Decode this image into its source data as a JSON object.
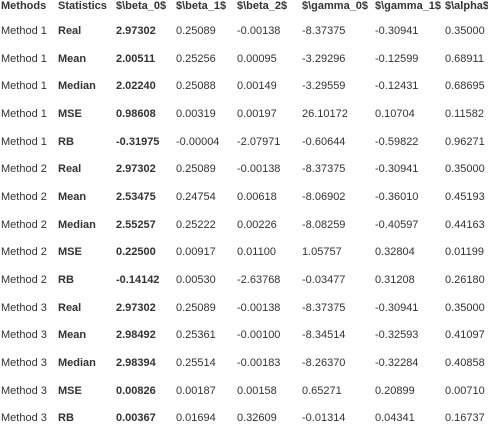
{
  "table": {
    "headers": [
      "Methods",
      "Statistics",
      "$\\beta_0$",
      "$\\beta_1$",
      "$\\beta_2$",
      "$\\gamma_0$",
      "$\\gamma_1$",
      "$\\alpha$"
    ],
    "rows": [
      [
        "Method 1",
        "Real",
        "2.97302",
        "0.25089",
        "-0.00138",
        "-8.37375",
        "-0.30941",
        "0.35000"
      ],
      [
        "Method 1",
        "Mean",
        "2.00511",
        "0.25256",
        "0.00095",
        "-3.29296",
        "-0.12599",
        "0.68911"
      ],
      [
        "Method 1",
        "Median",
        "2.02240",
        "0.25088",
        "0.00149",
        "-3.29559",
        "-0.12431",
        "0.68695"
      ],
      [
        "Method 1",
        "MSE",
        "0.98608",
        "0.00319",
        "0.00197",
        "26.10172",
        "0.10704",
        "0.11582"
      ],
      [
        "Method 1",
        "RB",
        "-0.31975",
        "-0.00004",
        "-2.07971",
        "-0.60644",
        "-0.59822",
        "0.96271"
      ],
      [
        "Method 2",
        "Real",
        "2.97302",
        "0.25089",
        "-0.00138",
        "-8.37375",
        "-0.30941",
        "0.35000"
      ],
      [
        "Method 2",
        "Mean",
        "2.53475",
        "0.24754",
        "0.00618",
        "-8.06902",
        "-0.36010",
        "0.45193"
      ],
      [
        "Method 2",
        "Median",
        "2.55257",
        "0.25222",
        "0.00226",
        "-8.08259",
        "-0.40597",
        "0.44163"
      ],
      [
        "Method 2",
        "MSE",
        "0.22500",
        "0.00917",
        "0.01100",
        "1.05757",
        "0.32804",
        "0.01199"
      ],
      [
        "Method 2",
        "RB",
        "-0.14142",
        "0.00530",
        "-2.63768",
        "-0.03477",
        "0.31208",
        "0.26180"
      ],
      [
        "Method 3",
        "Real",
        "2.97302",
        "0.25089",
        "-0.00138",
        "-8.37375",
        "-0.30941",
        "0.35000"
      ],
      [
        "Method 3",
        "Mean",
        "2.98492",
        "0.25361",
        "-0.00100",
        "-8.34514",
        "-0.32593",
        "0.41097"
      ],
      [
        "Method 3",
        "Median",
        "2.98394",
        "0.25514",
        "-0.00183",
        "-8.26370",
        "-0.32284",
        "0.40858"
      ],
      [
        "Method 3",
        "MSE",
        "0.00826",
        "0.00187",
        "0.00158",
        "0.65271",
        "0.20899",
        "0.00710"
      ],
      [
        "Method 3",
        "RB",
        "0.00367",
        "0.01694",
        "0.32609",
        "-0.01314",
        "0.04341",
        "0.16737"
      ]
    ]
  }
}
